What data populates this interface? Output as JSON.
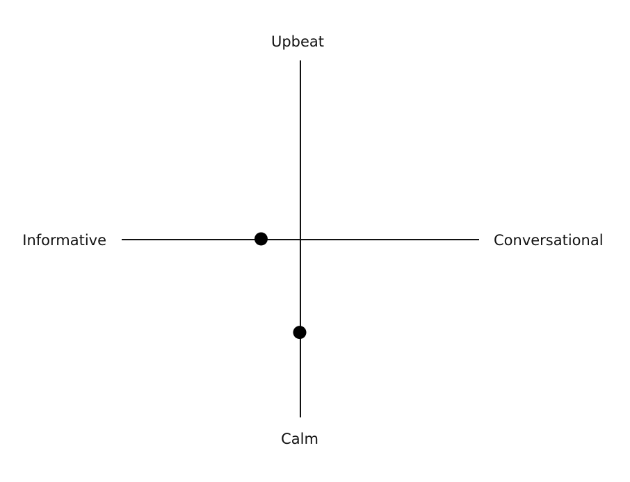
{
  "axes": {
    "top_label": "Upbeat",
    "bottom_label": "Calm",
    "left_label": "Informative",
    "right_label": "Conversational"
  },
  "markers": [
    {
      "name": "horizontal-axis-marker",
      "axis": "horizontal",
      "position": -0.22
    },
    {
      "name": "vertical-axis-marker",
      "axis": "vertical",
      "position": -0.52
    }
  ],
  "colors": {
    "line": "#111111",
    "marker": "#000000",
    "background": "#ffffff"
  }
}
